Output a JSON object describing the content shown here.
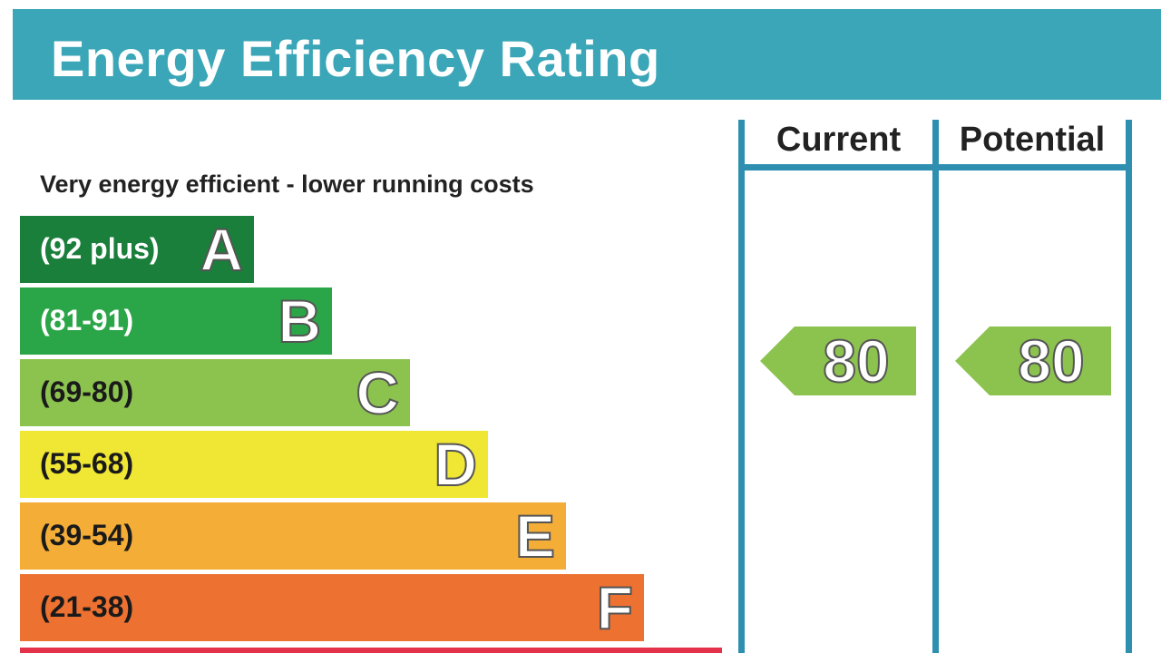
{
  "header": {
    "title": "Energy Efficiency Rating"
  },
  "subtitle": "Very energy efficient - lower running costs",
  "columns": {
    "current": "Current",
    "potential": "Potential"
  },
  "colors": {
    "header_bg": "#3aa6b7",
    "column_lines": "#2e8fb1",
    "arrow": "#8cc34f"
  },
  "chart_data": {
    "type": "bar",
    "categories": [
      "A",
      "B",
      "C",
      "D",
      "E",
      "F"
    ],
    "bands": [
      {
        "letter": "A",
        "range": "(92 plus)",
        "color": "#1a7f3b",
        "text_color": "#ffffff"
      },
      {
        "letter": "B",
        "range": "(81-91)",
        "color": "#2aa547",
        "text_color": "#ffffff"
      },
      {
        "letter": "C",
        "range": "(69-80)",
        "color": "#8cc34f",
        "text_color": "#1a1a1a"
      },
      {
        "letter": "D",
        "range": "(55-68)",
        "color": "#f0e634",
        "text_color": "#1a1a1a"
      },
      {
        "letter": "E",
        "range": "(39-54)",
        "color": "#f4ad36",
        "text_color": "#1a1a1a"
      },
      {
        "letter": "F",
        "range": "(21-38)",
        "color": "#ed7131",
        "text_color": "#1a1a1a"
      }
    ],
    "current_rating": 80,
    "potential_rating": 80,
    "current_band": "C",
    "potential_band": "C"
  }
}
